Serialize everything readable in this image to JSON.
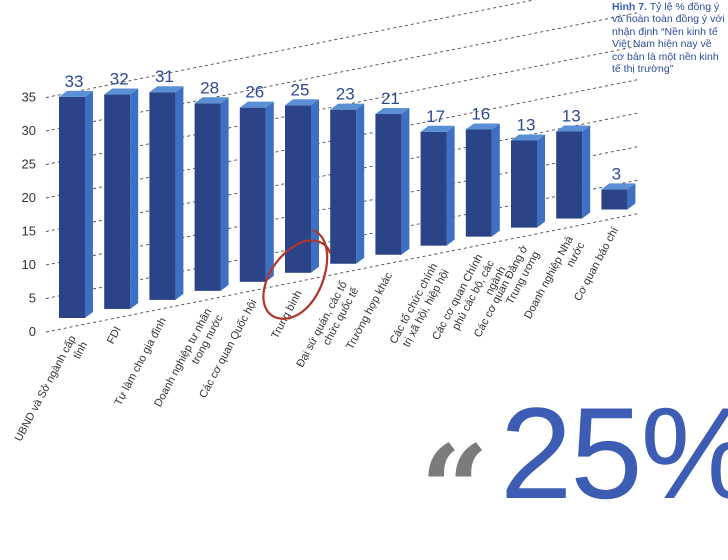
{
  "caption": {
    "title": "Hình 7.",
    "text": "Tỷ lệ % đồng ý và hoàn toàn đồng ý với nhận định “Nền kinh tế Việt Nam hiện nay về cơ bản là một nền kinh tế thị trường”"
  },
  "quote": {
    "mark": "“",
    "number": "25%"
  },
  "chart_data": {
    "type": "bar",
    "categories": [
      "UBND và Sở ngành cấp tỉnh",
      "FDI",
      "Tự làm cho gia đình",
      "Doanh nghiệp tư nhân trong nước",
      "Các cơ quan Quốc hội",
      "Trung bình",
      "Đại sứ quán, các tổ chức quốc tế",
      "Trường hợp khác",
      "Các tổ chức chính trị xã hội, hiệp hội",
      "Các cơ quan Chính phủ các bộ, các ngành",
      "Các cơ quan Đảng ở Trung ương",
      "Doanh nghiệp Nhà nước",
      "Cơ quan báo chí"
    ],
    "values": [
      33,
      32,
      31,
      28,
      26,
      25,
      23,
      21,
      17,
      16,
      13,
      13,
      3
    ],
    "data_labels": [
      "33",
      "32",
      "31",
      "28",
      "26",
      "25",
      "23",
      "21",
      "17",
      "16",
      "13",
      "13",
      "3"
    ],
    "yticks": [
      "0",
      "5",
      "10",
      "15",
      "20",
      "25",
      "30",
      "35"
    ],
    "ylim": [
      0,
      35
    ],
    "grid": true,
    "highlight": "Trung bình",
    "colors": {
      "bar_front": "#2b4488",
      "bar_top": "#5a8fd6",
      "bar_side": "#3d6fc2",
      "label": "#2d4a94",
      "highlight_circle": "#b3362c"
    }
  }
}
